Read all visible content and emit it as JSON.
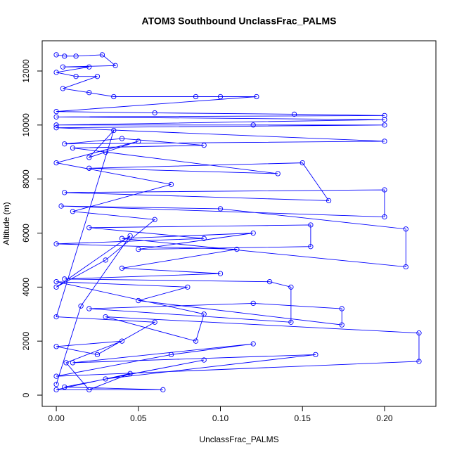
{
  "chart_data": {
    "type": "line",
    "markers": true,
    "title": "ATOM3 Southbound UnclassFrac_PALMS",
    "x_label": "UnclassFrac_PALMS",
    "y_label": "Altitude (m)",
    "x": [
      0.0,
      0.005,
      0.012,
      0.028,
      0.036,
      0.004,
      0.02,
      0.0,
      0.012,
      0.025,
      0.004,
      0.02,
      0.035,
      0.085,
      0.1,
      0.122,
      0.0,
      0.06,
      0.145,
      0.2,
      0.0,
      0.2,
      0.0,
      0.12,
      0.2,
      0.0,
      0.2,
      0.005,
      0.04,
      0.09,
      0.01,
      0.03,
      0.135,
      0.02,
      0.15,
      0.166,
      0.005,
      0.2,
      0.2,
      0.003,
      0.1,
      0.213,
      0.213,
      0.04,
      0.12,
      0.05,
      0.155,
      0.155,
      0.02,
      0.09,
      0.0,
      0.11,
      0.04,
      0.1,
      0.005,
      0.13,
      0.143,
      0.143,
      0.02,
      0.12,
      0.174,
      0.174,
      0.05,
      0.08,
      0.0,
      0.09,
      0.085,
      0.03,
      0.221,
      0.221,
      0.0,
      0.07,
      0.12,
      0.01,
      0.158,
      0.03,
      0.09,
      0.005,
      0.065,
      0.0,
      0.045,
      0.02,
      0.006,
      0.04,
      0.0,
      0.025,
      0.06,
      0.0,
      0.035,
      0.02,
      0.05,
      0.0,
      0.07,
      0.01,
      0.06,
      0.03,
      0.0,
      0.045,
      0.015,
      0.0
    ],
    "series": [
      {
        "name": "Altitude",
        "color": "#0000ff",
        "values": [
          12600,
          12550,
          12550,
          12600,
          12200,
          12150,
          12150,
          11950,
          11800,
          11800,
          11350,
          11200,
          11050,
          11050,
          11050,
          11050,
          10500,
          10450,
          10400,
          10350,
          10300,
          10200,
          10000,
          10000,
          10000,
          9900,
          9400,
          9300,
          9500,
          9250,
          9150,
          9000,
          8200,
          8400,
          8600,
          7200,
          7500,
          7600,
          6600,
          7000,
          6900,
          6150,
          4750,
          5800,
          6000,
          5400,
          5500,
          6300,
          6200,
          5800,
          5600,
          5400,
          4700,
          4500,
          4300,
          4200,
          4000,
          2700,
          3200,
          3400,
          3200,
          2600,
          3500,
          4000,
          4200,
          3000,
          2000,
          2900,
          2300,
          1250,
          700,
          1500,
          1900,
          1200,
          1500,
          600,
          1300,
          300,
          200,
          200,
          800,
          200,
          1200,
          2000,
          1800,
          1500,
          2700,
          2900,
          9800,
          8800,
          9400,
          8600,
          7800,
          6800,
          6500,
          5000,
          4000,
          5900,
          3300,
          400
        ]
      }
    ],
    "xlim": [
      -0.0086,
      0.2313
    ],
    "ylim": [
      -416,
      13119
    ],
    "xticks": [
      {
        "value": 0,
        "label": "0.00"
      },
      {
        "value": 0.05,
        "label": "0.05"
      },
      {
        "value": 0.1,
        "label": "0.10"
      },
      {
        "value": 0.15,
        "label": "0.15"
      },
      {
        "value": 0.2,
        "label": "0.20"
      }
    ],
    "yticks": [
      0,
      2000,
      4000,
      6000,
      8000,
      10000,
      12000
    ],
    "grid": false
  }
}
